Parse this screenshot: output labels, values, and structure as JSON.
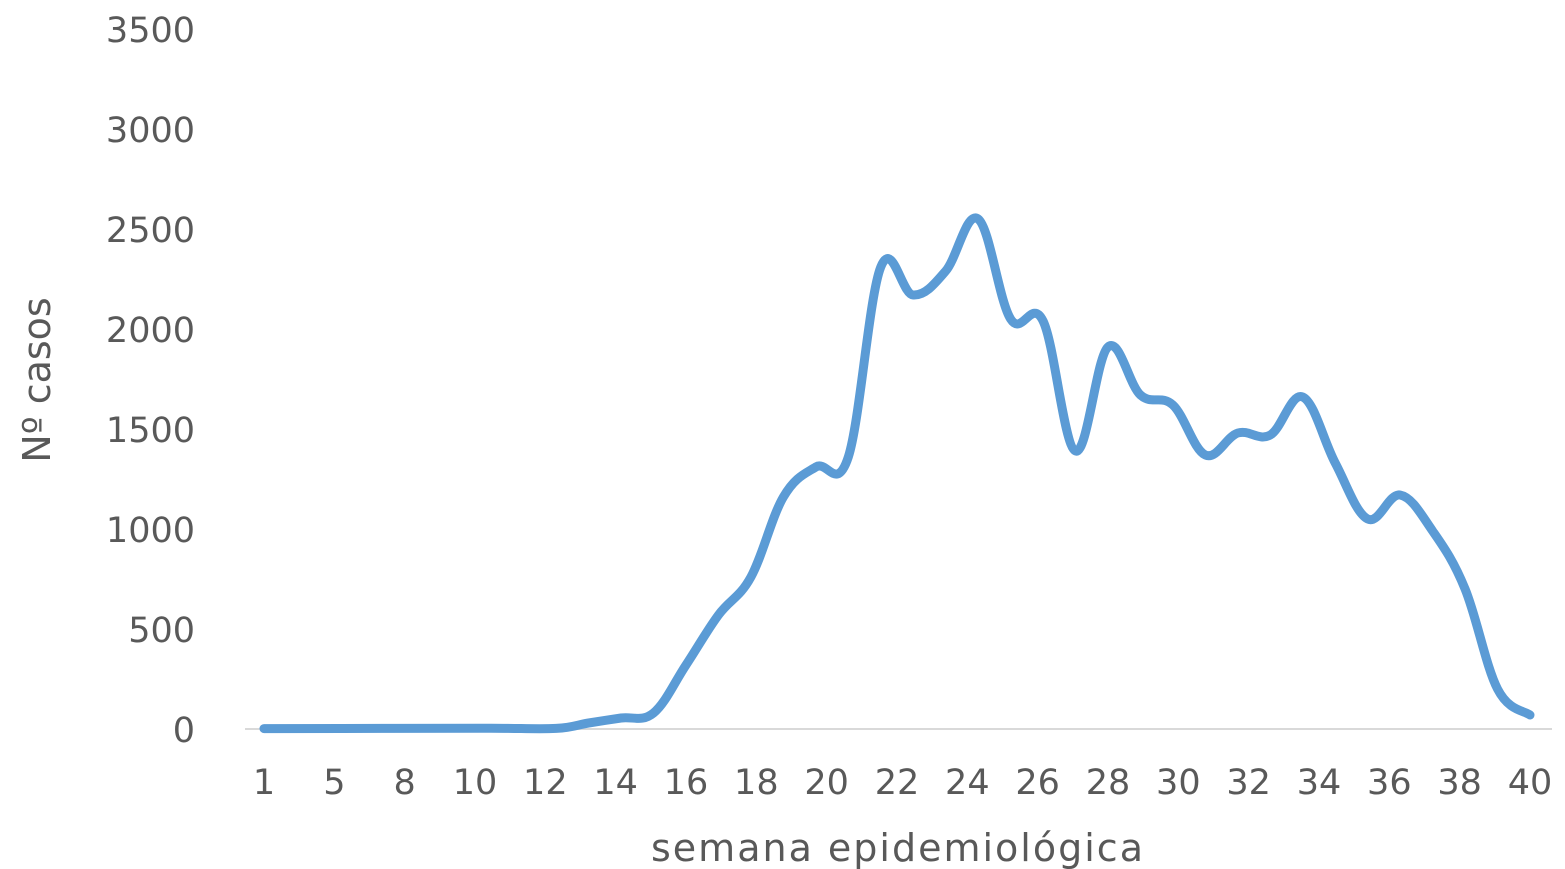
{
  "chart_data": {
    "type": "line",
    "title": "",
    "xlabel": "semana epidemiológica",
    "ylabel": "Nº casos",
    "ylim": [
      0,
      3500
    ],
    "yticks": [
      0,
      500,
      1000,
      1500,
      2000,
      2500,
      3000,
      3500
    ],
    "x_tick_labels": [
      "1",
      "5",
      "8",
      "10",
      "12",
      "14",
      "16",
      "18",
      "20",
      "22",
      "24",
      "26",
      "28",
      "30",
      "32",
      "34",
      "36",
      "38",
      "40"
    ],
    "grid": false,
    "legend": "none",
    "smooth": true,
    "series": [
      {
        "color": "#5b9bd5",
        "points": [
          {
            "x": 1,
            "y": 2
          },
          {
            "x": 5,
            "y": 3
          },
          {
            "x": 8,
            "y": 4
          },
          {
            "x": 10,
            "y": 3
          },
          {
            "x": 11,
            "y": 30
          },
          {
            "x": 12,
            "y": 55
          },
          {
            "x": 13,
            "y": 80
          },
          {
            "x": 14,
            "y": 320
          },
          {
            "x": 15,
            "y": 570
          },
          {
            "x": 16,
            "y": 760
          },
          {
            "x": 17,
            "y": 1160
          },
          {
            "x": 18,
            "y": 1310
          },
          {
            "x": 19,
            "y": 1360
          },
          {
            "x": 20,
            "y": 2310
          },
          {
            "x": 21,
            "y": 2170
          },
          {
            "x": 22,
            "y": 2290
          },
          {
            "x": 23,
            "y": 2550
          },
          {
            "x": 24,
            "y": 2050
          },
          {
            "x": 25,
            "y": 2040
          },
          {
            "x": 26,
            "y": 1390
          },
          {
            "x": 27,
            "y": 1910
          },
          {
            "x": 28,
            "y": 1670
          },
          {
            "x": 29,
            "y": 1620
          },
          {
            "x": 30,
            "y": 1370
          },
          {
            "x": 31,
            "y": 1480
          },
          {
            "x": 32,
            "y": 1470
          },
          {
            "x": 33,
            "y": 1660
          },
          {
            "x": 34,
            "y": 1330
          },
          {
            "x": 35,
            "y": 1050
          },
          {
            "x": 36,
            "y": 1170
          },
          {
            "x": 37,
            "y": 990
          },
          {
            "x": 38,
            "y": 700
          },
          {
            "x": 39,
            "y": 200
          },
          {
            "x": 40,
            "y": 70
          }
        ]
      }
    ]
  }
}
